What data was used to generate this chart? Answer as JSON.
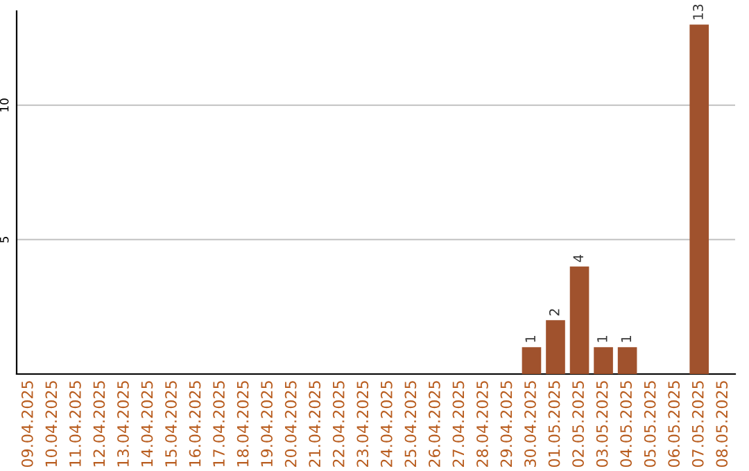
{
  "chart_data": {
    "type": "bar",
    "categories": [
      "09.04.2025",
      "10.04.2025",
      "11.04.2025",
      "12.04.2025",
      "13.04.2025",
      "14.04.2025",
      "15.04.2025",
      "16.04.2025",
      "17.04.2025",
      "18.04.2025",
      "19.04.2025",
      "20.04.2025",
      "21.04.2025",
      "22.04.2025",
      "23.04.2025",
      "24.04.2025",
      "25.04.2025",
      "26.04.2025",
      "27.04.2025",
      "28.04.2025",
      "29.04.2025",
      "30.04.2025",
      "01.05.2025",
      "02.05.2025",
      "03.05.2025",
      "04.05.2025",
      "05.05.2025",
      "06.05.2025",
      "07.05.2025",
      "08.05.2025"
    ],
    "values": [
      0,
      0,
      0,
      0,
      0,
      0,
      0,
      0,
      0,
      0,
      0,
      0,
      0,
      0,
      0,
      0,
      0,
      0,
      0,
      0,
      0,
      1,
      2,
      4,
      1,
      1,
      0,
      0,
      13,
      0
    ],
    "value_labels": [
      null,
      null,
      null,
      null,
      null,
      null,
      null,
      null,
      null,
      null,
      null,
      null,
      null,
      null,
      null,
      null,
      null,
      null,
      null,
      null,
      null,
      "1",
      "2",
      "4",
      "1",
      "1",
      null,
      null,
      "13",
      null
    ],
    "color": "#a0522d",
    "ylim": [
      0,
      13.5
    ],
    "yticks": [
      5,
      10
    ],
    "grid": "y"
  }
}
